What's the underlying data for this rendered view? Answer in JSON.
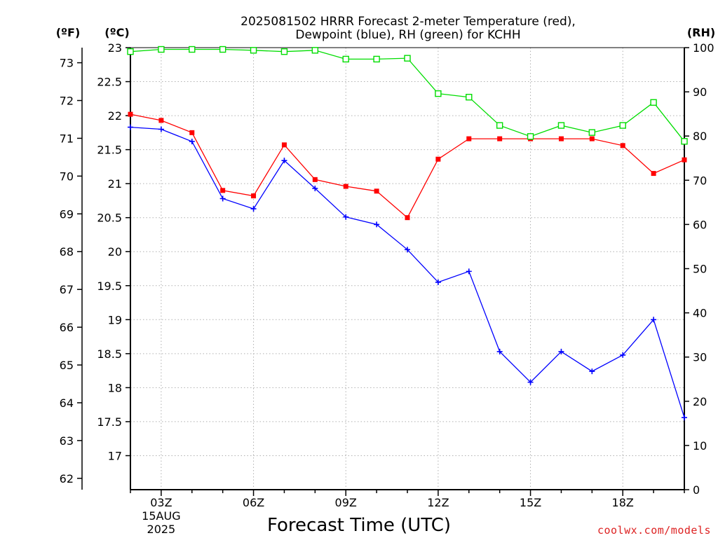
{
  "chart_data": {
    "type": "line",
    "title": [
      "2025081502 HRRR Forecast 2-meter Temperature (red),",
      "Dewpoint (blue), RH (green) for KCHH"
    ],
    "xlabel": "Forecast Time (UTC)",
    "watermark": "coolwx.com/models",
    "axis_units": {
      "fahrenheit": "(ºF)",
      "celsius": "(ºC)",
      "rh": "(RH)"
    },
    "x_hours": [
      2,
      3,
      4,
      5,
      6,
      7,
      8,
      9,
      10,
      11,
      12,
      13,
      14,
      15,
      16,
      17,
      18,
      19,
      20
    ],
    "x_ticks": [
      {
        "hour": 3,
        "label": "03Z",
        "sub": [
          "15AUG",
          "2025"
        ]
      },
      {
        "hour": 6,
        "label": "06Z"
      },
      {
        "hour": 9,
        "label": "09Z"
      },
      {
        "hour": 12,
        "label": "12Z"
      },
      {
        "hour": 15,
        "label": "15Z"
      },
      {
        "hour": 18,
        "label": "18Z"
      }
    ],
    "xlim": [
      2,
      20
    ],
    "y_celsius_ticks": [
      17,
      17.5,
      18,
      18.5,
      19,
      19.5,
      20,
      20.5,
      21,
      21.5,
      22,
      22.5,
      23
    ],
    "y_celsius_lim": [
      16.5,
      23.0
    ],
    "y_fahrenheit_ticks": [
      62,
      63,
      64,
      65,
      66,
      67,
      68,
      69,
      70,
      71,
      72,
      73
    ],
    "y_rh_ticks": [
      0,
      10,
      20,
      30,
      40,
      50,
      60,
      70,
      80,
      90,
      100
    ],
    "y_rh_lim": [
      0,
      100
    ],
    "grid": true,
    "series": [
      {
        "name": "Temperature",
        "color": "#ff0000",
        "marker": "filled-square",
        "axis": "celsius",
        "values": [
          22.02,
          21.93,
          21.75,
          20.9,
          20.82,
          21.57,
          21.06,
          20.96,
          20.89,
          20.5,
          21.36,
          21.66,
          21.66,
          21.66,
          21.66,
          21.66,
          21.56,
          21.15,
          21.35
        ]
      },
      {
        "name": "Dewpoint",
        "color": "#0000ff",
        "marker": "plus",
        "axis": "celsius",
        "values": [
          21.83,
          21.8,
          21.62,
          20.78,
          20.63,
          21.34,
          20.93,
          20.51,
          20.4,
          20.03,
          19.55,
          19.71,
          18.53,
          18.08,
          18.53,
          18.24,
          18.48,
          19.0,
          17.56
        ]
      },
      {
        "name": "RH",
        "color": "#00dd00",
        "marker": "open-square",
        "axis": "rh",
        "values": [
          99.1,
          99.6,
          99.6,
          99.6,
          99.4,
          99.1,
          99.4,
          97.4,
          97.4,
          97.6,
          89.6,
          88.8,
          82.4,
          79.9,
          82.4,
          80.8,
          82.4,
          87.6,
          78.8
        ]
      }
    ]
  }
}
